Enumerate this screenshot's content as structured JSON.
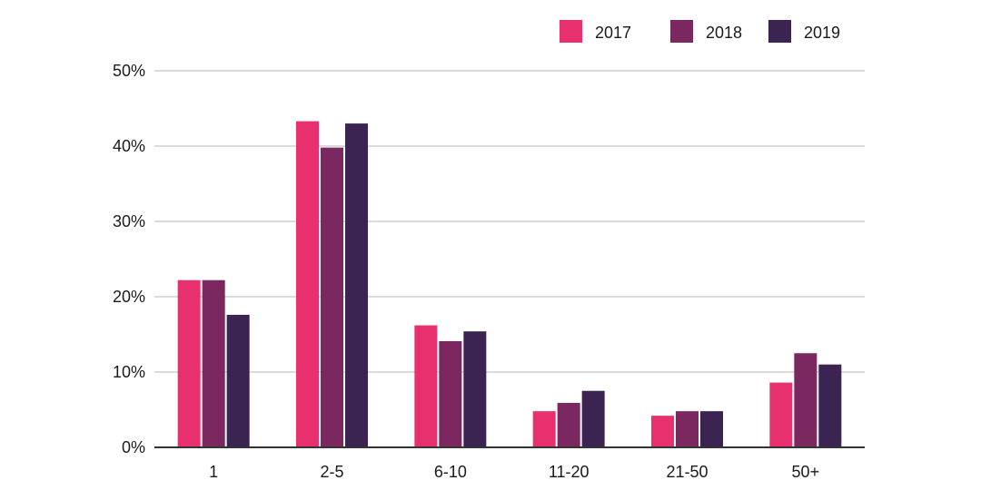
{
  "chart_data": {
    "type": "bar",
    "title": "",
    "xlabel": "",
    "ylabel": "",
    "categories": [
      "1",
      "2-5",
      "6-10",
      "11-20",
      "21-50",
      "50+"
    ],
    "series": [
      {
        "name": "2017",
        "color": "#e8306e",
        "values": [
          22.2,
          43.3,
          16.2,
          4.8,
          4.2,
          8.6
        ]
      },
      {
        "name": "2018",
        "color": "#7b2860",
        "values": [
          22.2,
          39.8,
          14.1,
          5.9,
          4.8,
          12.5
        ]
      },
      {
        "name": "2019",
        "color": "#3b2451",
        "values": [
          17.6,
          43.0,
          15.4,
          7.5,
          4.8,
          11.0
        ]
      }
    ],
    "ylim": [
      0,
      50
    ],
    "yticks": [
      "0%",
      "10%",
      "20%",
      "30%",
      "40%",
      "50%"
    ],
    "ytick_values": [
      0,
      10,
      20,
      30,
      40,
      50
    ],
    "grid": true,
    "legend_position": "top-right",
    "colors": {
      "gridline": "#cfcfcf",
      "axis": "#333333"
    }
  }
}
